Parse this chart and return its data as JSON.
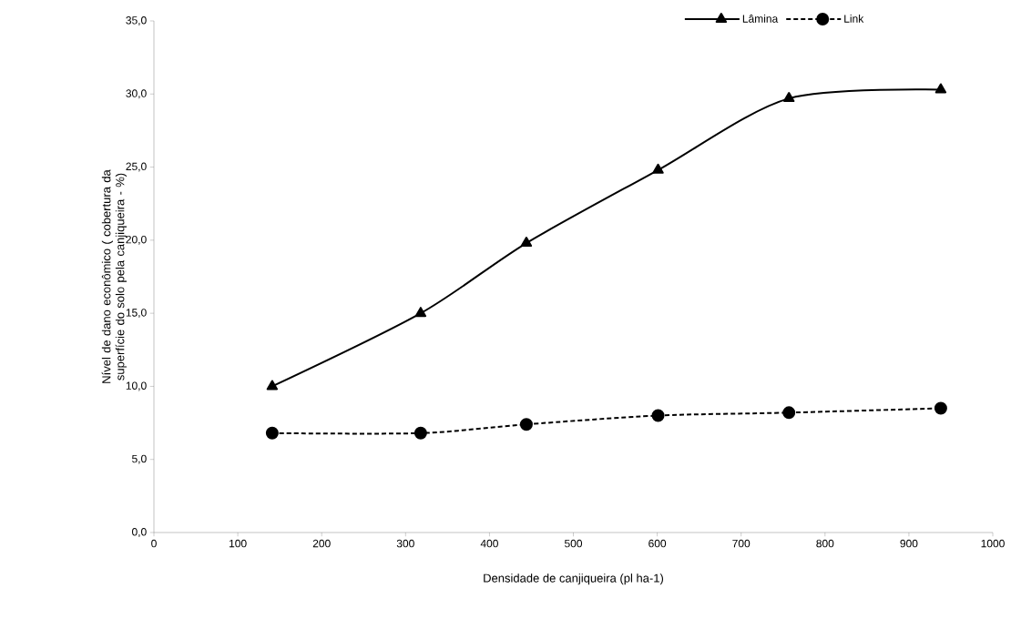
{
  "chart_data": {
    "type": "line",
    "xlabel": "Densidade de canjiqueira (pl ha-1)",
    "ylabel": "Nível de dano econômico ( cobertura da superfície do solo pela canjiqueira - %)",
    "x": [
      141,
      318,
      444,
      601,
      757,
      938
    ],
    "series": [
      {
        "name": "Lâmina",
        "color": "#000000",
        "marker": "triangle",
        "line_style": "solid",
        "values": [
          10.0,
          15.0,
          19.8,
          24.8,
          29.7,
          30.3
        ]
      },
      {
        "name": "Link",
        "color": "#000000",
        "marker": "circle",
        "line_style": "dashed",
        "values": [
          6.8,
          6.8,
          7.4,
          8.0,
          8.2,
          8.5
        ]
      }
    ],
    "xlim": [
      0,
      1000
    ],
    "xticks": [
      0,
      100,
      200,
      300,
      400,
      500,
      600,
      700,
      800,
      900,
      1000
    ],
    "ylim": [
      0,
      35
    ],
    "yticks": [
      {
        "value": 0,
        "label": "0,0"
      },
      {
        "value": 5,
        "label": "5,0"
      },
      {
        "value": 10,
        "label": "10,0"
      },
      {
        "value": 15,
        "label": "15,0"
      },
      {
        "value": 20,
        "label": "20,0"
      },
      {
        "value": 25,
        "label": "25,0"
      },
      {
        "value": 30,
        "label": "30,0"
      },
      {
        "value": 35,
        "label": "35,0"
      }
    ],
    "grid": false,
    "legend": "top"
  }
}
